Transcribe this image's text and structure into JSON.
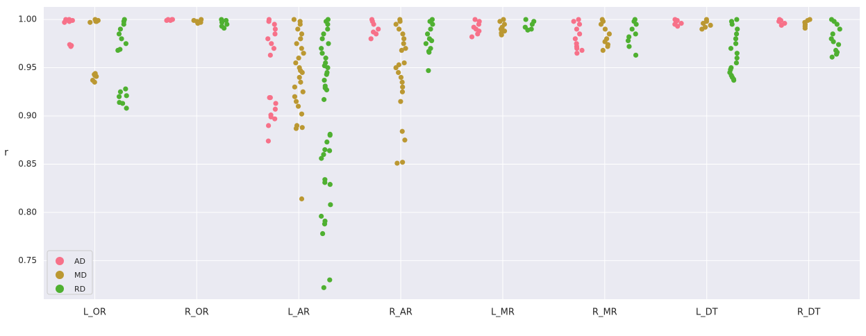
{
  "chart_data": {
    "type": "scatter",
    "subtype": "strip",
    "title": "",
    "xlabel": "",
    "ylabel": "r",
    "ylim": [
      0.71,
      1.013
    ],
    "yticks": [
      0.75,
      0.8,
      0.85,
      0.9,
      0.95,
      1.0
    ],
    "ytick_labels": [
      "0.75",
      "0.80",
      "0.85",
      "0.90",
      "0.95",
      "1.00"
    ],
    "categories": [
      "L_OR",
      "R_OR",
      "L_AR",
      "R_AR",
      "L_MR",
      "R_MR",
      "L_DT",
      "R_DT"
    ],
    "grid": true,
    "legend_position": "lower-left",
    "background": "#eaeaf2",
    "series": [
      {
        "name": "AD",
        "color": "#f77189",
        "points": {
          "L_OR": [
            1.0,
            1.0,
            0.999,
            0.999,
            0.998,
            0.998,
            0.997,
            0.973,
            0.974,
            0.972
          ],
          "R_OR": [
            1.0,
            1.0,
            1.0,
            0.999,
            0.999
          ],
          "L_AR": [
            1.0,
            0.998,
            0.995,
            0.99,
            0.985,
            0.98,
            0.975,
            0.97,
            0.963,
            0.919,
            0.919,
            0.913,
            0.907,
            0.901,
            0.899,
            0.897,
            0.89,
            0.874
          ],
          "R_AR": [
            1.0,
            0.998,
            0.995,
            0.99,
            0.987,
            0.985,
            0.98
          ],
          "L_MR": [
            1.0,
            0.998,
            0.995,
            0.992,
            0.99,
            0.988,
            0.985,
            0.982
          ],
          "R_MR": [
            1.0,
            0.998,
            0.995,
            0.99,
            0.985,
            0.98,
            0.975,
            0.972,
            0.97,
            0.968,
            0.965
          ],
          "L_DT": [
            1.0,
            0.999,
            0.998,
            0.996,
            0.995,
            0.993
          ],
          "R_DT": [
            1.0,
            0.999,
            0.998,
            0.996,
            0.994
          ]
        }
      },
      {
        "name": "MD",
        "color": "#bb9832",
        "points": {
          "L_OR": [
            1.0,
            0.999,
            0.998,
            0.998,
            0.997,
            0.944,
            0.943,
            0.942,
            0.941,
            0.937,
            0.935
          ],
          "R_OR": [
            1.0,
            0.999,
            0.998,
            0.997,
            0.996
          ],
          "L_AR": [
            1.0,
            0.998,
            0.995,
            0.99,
            0.985,
            0.98,
            0.975,
            0.97,
            0.965,
            0.96,
            0.955,
            0.95,
            0.947,
            0.945,
            0.94,
            0.935,
            0.93,
            0.925,
            0.92,
            0.915,
            0.91,
            0.902,
            0.89,
            0.888,
            0.887,
            0.814
          ],
          "R_AR": [
            1.0,
            0.998,
            0.995,
            0.99,
            0.985,
            0.98,
            0.975,
            0.97,
            0.968,
            0.955,
            0.953,
            0.95,
            0.945,
            0.94,
            0.935,
            0.93,
            0.925,
            0.915,
            0.884,
            0.875,
            0.852,
            0.851
          ],
          "L_MR": [
            1.0,
            0.998,
            0.995,
            0.992,
            0.99,
            0.988,
            0.986,
            0.984
          ],
          "R_MR": [
            1.0,
            0.998,
            0.995,
            0.99,
            0.985,
            0.98,
            0.977,
            0.974,
            0.972,
            0.968
          ],
          "L_DT": [
            1.0,
            0.998,
            0.996,
            0.994,
            0.992,
            0.99
          ],
          "R_DT": [
            1.0,
            0.999,
            0.997,
            0.995,
            0.993,
            0.991
          ]
        }
      },
      {
        "name": "RD",
        "color": "#4fb031",
        "points": {
          "L_OR": [
            1.0,
            0.998,
            0.995,
            0.99,
            0.985,
            0.98,
            0.975,
            0.969,
            0.968,
            0.928,
            0.925,
            0.921,
            0.92,
            0.914,
            0.913,
            0.908
          ],
          "R_OR": [
            1.0,
            0.999,
            0.997,
            0.995,
            0.993,
            0.991
          ],
          "L_AR": [
            1.0,
            0.998,
            0.995,
            0.99,
            0.985,
            0.98,
            0.975,
            0.97,
            0.965,
            0.96,
            0.955,
            0.952,
            0.95,
            0.945,
            0.943,
            0.937,
            0.931,
            0.929,
            0.927,
            0.917,
            0.881,
            0.88,
            0.873,
            0.865,
            0.864,
            0.86,
            0.856,
            0.834,
            0.831,
            0.829,
            0.808,
            0.796,
            0.791,
            0.788,
            0.778,
            0.73,
            0.722
          ],
          "R_AR": [
            1.0,
            0.998,
            0.995,
            0.99,
            0.985,
            0.98,
            0.978,
            0.975,
            0.97,
            0.967,
            0.966,
            0.947
          ],
          "L_MR": [
            1.0,
            0.998,
            0.995,
            0.992,
            0.99,
            0.989
          ],
          "R_MR": [
            1.0,
            0.998,
            0.995,
            0.99,
            0.985,
            0.982,
            0.978,
            0.972,
            0.963
          ],
          "L_DT": [
            1.0,
            0.998,
            0.995,
            0.99,
            0.985,
            0.98,
            0.975,
            0.97,
            0.965,
            0.96,
            0.955,
            0.95,
            0.948,
            0.945,
            0.942,
            0.94,
            0.938,
            0.937
          ],
          "R_DT": [
            1.0,
            0.998,
            0.995,
            0.99,
            0.985,
            0.98,
            0.977,
            0.974,
            0.968,
            0.966,
            0.964,
            0.961
          ]
        }
      }
    ]
  }
}
